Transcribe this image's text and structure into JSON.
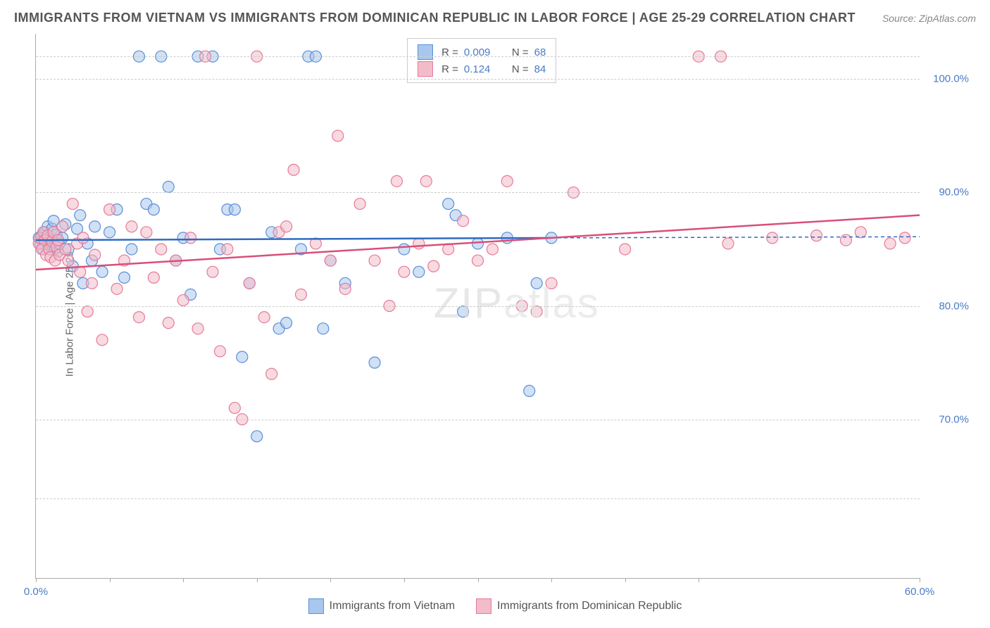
{
  "title": "IMMIGRANTS FROM VIETNAM VS IMMIGRANTS FROM DOMINICAN REPUBLIC IN LABOR FORCE | AGE 25-29 CORRELATION CHART",
  "source": "Source: ZipAtlas.com",
  "ylabel": "In Labor Force | Age 25-29",
  "watermark": "ZIPatlas",
  "chart": {
    "type": "scatter",
    "xlim": [
      0,
      60
    ],
    "ylim": [
      56,
      104
    ],
    "xticks": [
      0,
      5,
      10,
      15,
      20,
      25,
      30,
      35,
      40,
      45,
      60
    ],
    "xtick_labels": {
      "0": "0.0%",
      "60": "60.0%"
    },
    "yticks": [
      70,
      80,
      90,
      100
    ],
    "ytick_labels": {
      "70": "70.0%",
      "80": "80.0%",
      "90": "90.0%",
      "100": "100.0%"
    },
    "gridlines_y": [
      63,
      70,
      80,
      90,
      100,
      102
    ],
    "background_color": "#ffffff",
    "grid_color": "#cccccc",
    "marker_radius": 8,
    "marker_opacity": 0.55,
    "series": [
      {
        "name": "Immigrants from Vietnam",
        "color_fill": "#a9c7ed",
        "color_stroke": "#5a8fd6",
        "R": "0.009",
        "N": "68",
        "trend": {
          "x1": 0,
          "y1": 85.8,
          "x2": 35,
          "y2": 86.0,
          "color": "#2f6bc2",
          "width": 2.5
        },
        "trend_ext": {
          "x1": 35,
          "y1": 86.0,
          "x2": 60,
          "y2": 86.1,
          "color": "#2f6bc2",
          "width": 1.5,
          "dash": "5,4"
        },
        "points": [
          [
            0.2,
            86
          ],
          [
            0.3,
            85.5
          ],
          [
            0.4,
            86.2
          ],
          [
            0.5,
            85
          ],
          [
            0.6,
            86.5
          ],
          [
            0.7,
            85.8
          ],
          [
            0.8,
            87
          ],
          [
            0.9,
            86
          ],
          [
            1.0,
            85.2
          ],
          [
            1.1,
            86.8
          ],
          [
            1.2,
            87.5
          ],
          [
            1.3,
            85
          ],
          [
            1.4,
            86.3
          ],
          [
            1.5,
            84.8
          ],
          [
            1.6,
            85.5
          ],
          [
            1.8,
            86
          ],
          [
            2.0,
            87.2
          ],
          [
            2.2,
            85
          ],
          [
            2.5,
            83.5
          ],
          [
            2.8,
            86.8
          ],
          [
            3.0,
            88
          ],
          [
            3.2,
            82
          ],
          [
            3.5,
            85.5
          ],
          [
            3.8,
            84
          ],
          [
            4.0,
            87
          ],
          [
            4.5,
            83
          ],
          [
            5.0,
            86.5
          ],
          [
            5.5,
            88.5
          ],
          [
            6.0,
            82.5
          ],
          [
            6.5,
            85
          ],
          [
            7.0,
            102
          ],
          [
            7.5,
            89
          ],
          [
            8.0,
            88.5
          ],
          [
            8.5,
            102
          ],
          [
            9.0,
            90.5
          ],
          [
            9.5,
            84
          ],
          [
            10.0,
            86
          ],
          [
            10.5,
            81
          ],
          [
            11.0,
            102
          ],
          [
            12.0,
            102
          ],
          [
            12.5,
            85
          ],
          [
            13.0,
            88.5
          ],
          [
            13.5,
            88.5
          ],
          [
            14.0,
            75.5
          ],
          [
            14.5,
            82
          ],
          [
            15.0,
            68.5
          ],
          [
            16.0,
            86.5
          ],
          [
            16.5,
            78
          ],
          [
            17.0,
            78.5
          ],
          [
            18.0,
            85
          ],
          [
            18.5,
            102
          ],
          [
            19.0,
            102
          ],
          [
            19.5,
            78
          ],
          [
            20.0,
            84
          ],
          [
            21.0,
            82
          ],
          [
            23.0,
            75
          ],
          [
            25.0,
            85
          ],
          [
            26.0,
            83
          ],
          [
            28.0,
            89
          ],
          [
            28.5,
            88
          ],
          [
            29.0,
            79.5
          ],
          [
            30.0,
            85.5
          ],
          [
            32.0,
            86
          ],
          [
            33.5,
            72.5
          ],
          [
            34.0,
            82
          ],
          [
            35.0,
            86
          ]
        ]
      },
      {
        "name": "Immigrants from Dominican Republic",
        "color_fill": "#f2bcc9",
        "color_stroke": "#e67a9a",
        "R": "0.124",
        "N": "84",
        "trend": {
          "x1": 0,
          "y1": 83.2,
          "x2": 60,
          "y2": 88.0,
          "color": "#d94f78",
          "width": 2.5
        },
        "points": [
          [
            0.2,
            85.5
          ],
          [
            0.3,
            86
          ],
          [
            0.4,
            85
          ],
          [
            0.5,
            86.5
          ],
          [
            0.6,
            85.8
          ],
          [
            0.7,
            84.5
          ],
          [
            0.8,
            86.2
          ],
          [
            0.9,
            85
          ],
          [
            1.0,
            84.3
          ],
          [
            1.1,
            85.7
          ],
          [
            1.2,
            86.5
          ],
          [
            1.3,
            84
          ],
          [
            1.4,
            85.2
          ],
          [
            1.5,
            85.8
          ],
          [
            1.6,
            84.5
          ],
          [
            1.8,
            87
          ],
          [
            2.0,
            85
          ],
          [
            2.2,
            84
          ],
          [
            2.5,
            89
          ],
          [
            2.8,
            85.5
          ],
          [
            3.0,
            83
          ],
          [
            3.2,
            86
          ],
          [
            3.5,
            79.5
          ],
          [
            3.8,
            82
          ],
          [
            4.0,
            84.5
          ],
          [
            4.5,
            77
          ],
          [
            5.0,
            88.5
          ],
          [
            5.5,
            81.5
          ],
          [
            6.0,
            84
          ],
          [
            6.5,
            87
          ],
          [
            7.0,
            79
          ],
          [
            7.5,
            86.5
          ],
          [
            8.0,
            82.5
          ],
          [
            8.5,
            85
          ],
          [
            9.0,
            78.5
          ],
          [
            9.5,
            84
          ],
          [
            10.0,
            80.5
          ],
          [
            10.5,
            86
          ],
          [
            11.0,
            78
          ],
          [
            11.5,
            102
          ],
          [
            12.0,
            83
          ],
          [
            12.5,
            76
          ],
          [
            13.0,
            85
          ],
          [
            13.5,
            71
          ],
          [
            14.0,
            70
          ],
          [
            14.5,
            82
          ],
          [
            15.0,
            102
          ],
          [
            15.5,
            79
          ],
          [
            16.0,
            74
          ],
          [
            16.5,
            86.5
          ],
          [
            17.0,
            87
          ],
          [
            17.5,
            92
          ],
          [
            18.0,
            81
          ],
          [
            19.0,
            85.5
          ],
          [
            20.0,
            84
          ],
          [
            20.5,
            95
          ],
          [
            21.0,
            81.5
          ],
          [
            22.0,
            89
          ],
          [
            23.0,
            84
          ],
          [
            24.0,
            80
          ],
          [
            24.5,
            91
          ],
          [
            25.0,
            83
          ],
          [
            26.0,
            85.5
          ],
          [
            26.5,
            91
          ],
          [
            27.0,
            83.5
          ],
          [
            28.0,
            85
          ],
          [
            29.0,
            87.5
          ],
          [
            30.0,
            84
          ],
          [
            31.0,
            85
          ],
          [
            32.0,
            91
          ],
          [
            33.0,
            80
          ],
          [
            34.0,
            79.5
          ],
          [
            35.0,
            82
          ],
          [
            36.5,
            90
          ],
          [
            40.0,
            85
          ],
          [
            45.0,
            102
          ],
          [
            47.0,
            85.5
          ],
          [
            46.5,
            102
          ],
          [
            50.0,
            86
          ],
          [
            53.0,
            86.2
          ],
          [
            55.0,
            85.8
          ],
          [
            56.0,
            86.5
          ],
          [
            58.0,
            85.5
          ],
          [
            59.0,
            86
          ]
        ]
      }
    ]
  },
  "legend_top": {
    "r_prefix": "R =",
    "n_prefix": "N ="
  }
}
